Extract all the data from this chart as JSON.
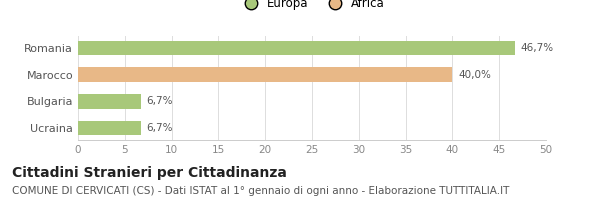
{
  "categories": [
    "Romania",
    "Marocco",
    "Bulgaria",
    "Ucraina"
  ],
  "values": [
    46.7,
    40.0,
    6.7,
    6.7
  ],
  "colors": [
    "#a8c87a",
    "#e8b887",
    "#a8c87a",
    "#a8c87a"
  ],
  "bar_labels": [
    "46,7%",
    "40,0%",
    "6,7%",
    "6,7%"
  ],
  "legend": [
    {
      "label": "Europa",
      "color": "#a8c87a"
    },
    {
      "label": "Africa",
      "color": "#e8b887"
    }
  ],
  "xlim": [
    0,
    50
  ],
  "xticks": [
    0,
    5,
    10,
    15,
    20,
    25,
    30,
    35,
    40,
    45,
    50
  ],
  "title": "Cittadini Stranieri per Cittadinanza",
  "subtitle": "COMUNE DI CERVICATI (CS) - Dati ISTAT al 1° gennaio di ogni anno - Elaborazione TUTTITALIA.IT",
  "background_color": "#ffffff",
  "bar_height": 0.55,
  "title_fontsize": 10,
  "subtitle_fontsize": 7.5,
  "label_fontsize": 7.5,
  "tick_fontsize": 7.5,
  "legend_fontsize": 8.5,
  "category_fontsize": 8
}
